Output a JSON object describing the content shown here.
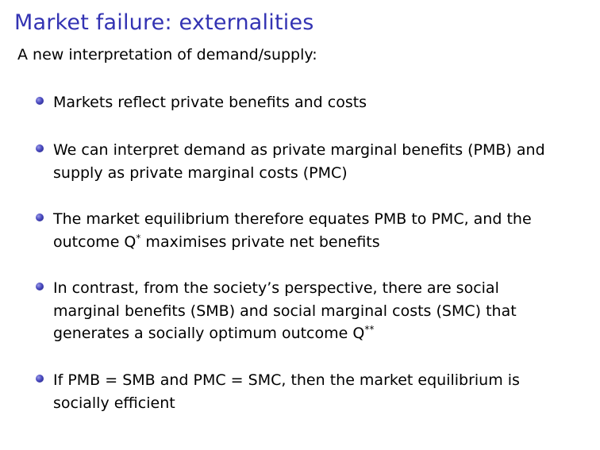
{
  "slide": {
    "title": "Market failure: externalities",
    "subtitle": "A new interpretation of demand/supply:",
    "bullets": [
      {
        "lines": [
          "Markets reflect private benefits and costs"
        ]
      },
      {
        "lines": [
          "We can interpret demand as private marginal benefits (PMB) and",
          "supply as private marginal costs (PMC)"
        ]
      },
      {
        "lines": [
          "The market equilibrium therefore equates PMB to PMC, and the",
          "outcome Q"
        ],
        "line2_sup": "*",
        "line2_tail": " maximises private net benefits"
      },
      {
        "lines": [
          "In contrast, from the society’s perspective, there are social",
          "marginal benefits (SMB) and social marginal costs (SMC) that",
          "generates a socially optimum outcome Q"
        ],
        "line3_sup": "**"
      },
      {
        "lines": [
          "If PMB = SMB and PMC = SMC, then the market equilibrium is",
          "socially efficient"
        ]
      }
    ]
  }
}
